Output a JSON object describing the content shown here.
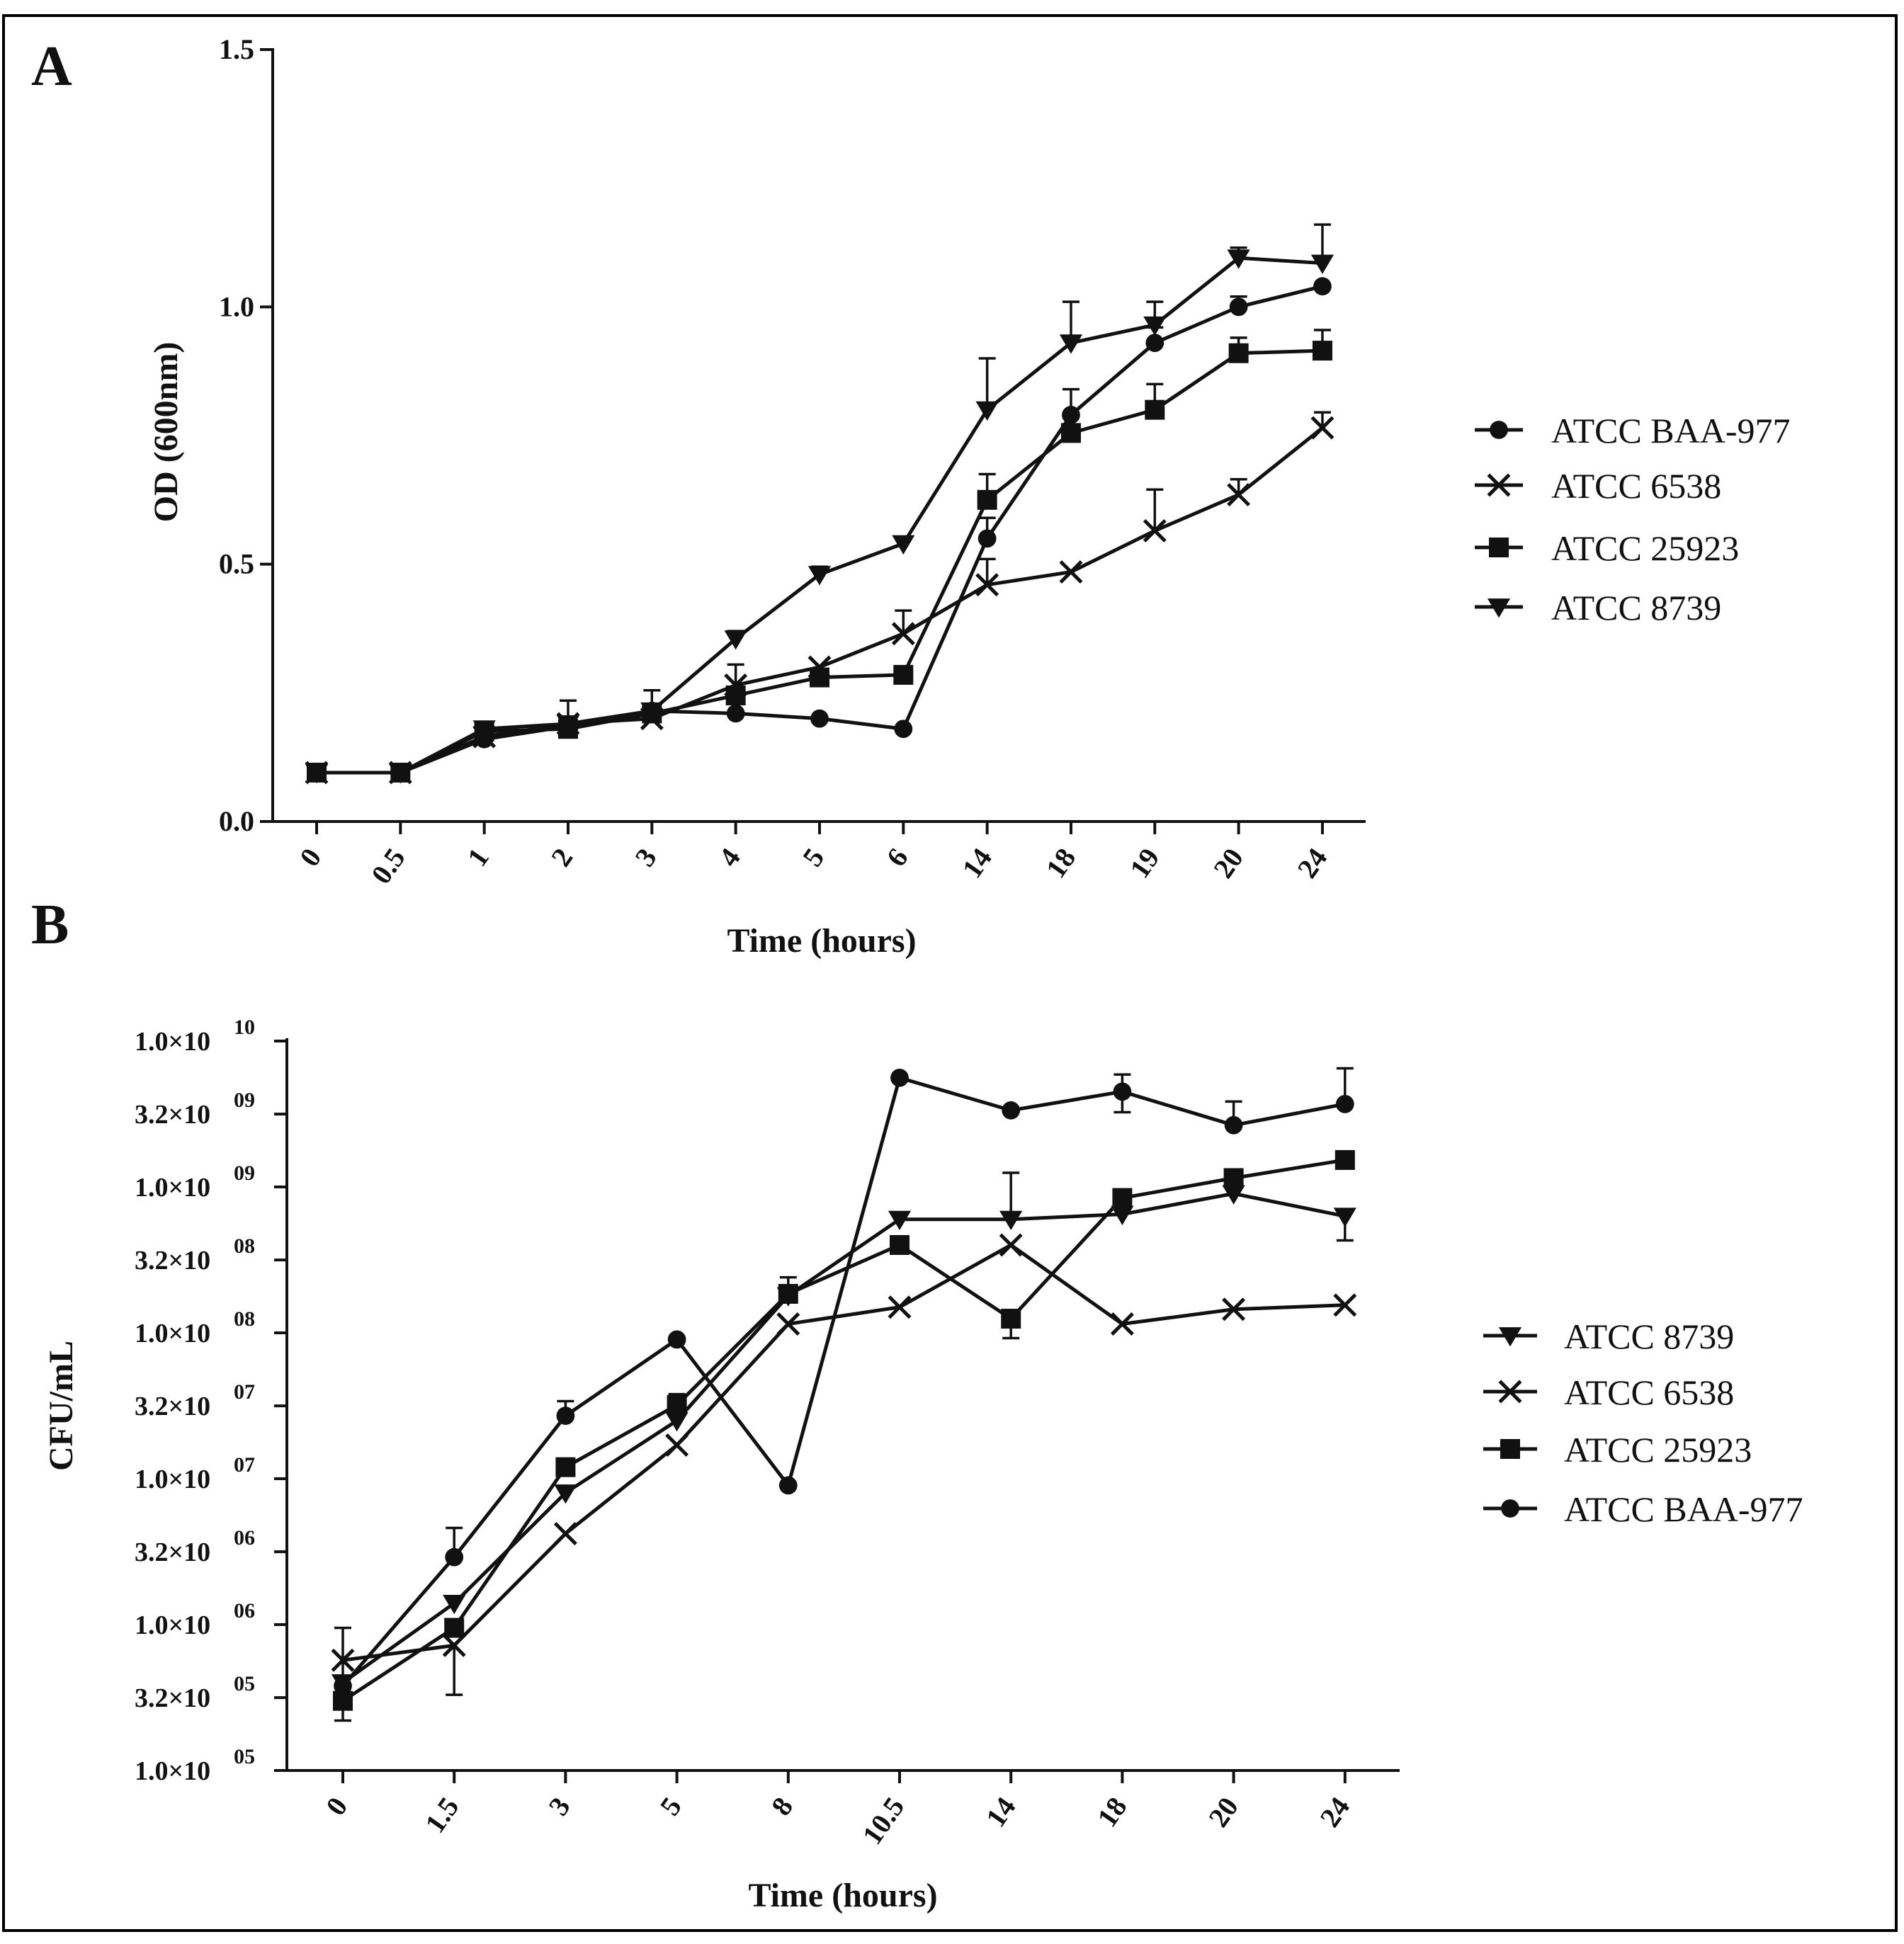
{
  "chart_data": [
    {
      "panel": "A",
      "type": "line",
      "ylabel": "OD (600nm)",
      "xlabel": "Time (hours)",
      "categories": [
        "0",
        "0.5",
        "1",
        "2",
        "3",
        "4",
        "5",
        "6",
        "14",
        "18",
        "19",
        "20",
        "24"
      ],
      "ylim": [
        0,
        1.5
      ],
      "yticks": [
        0,
        0.5,
        1,
        1.5
      ],
      "ytick_labels": [
        "0.0",
        "0.5",
        "1.0",
        "1.5"
      ],
      "legend_position": "right",
      "series": [
        {
          "name": "ATCC BAA-977",
          "marker": "circle",
          "values": [
            0.095,
            0.095,
            0.16,
            0.185,
            0.215,
            0.21,
            0.2,
            0.18,
            0.55,
            0.79,
            0.93,
            1.0,
            1.04
          ],
          "errors": [
            0.005,
            0.005,
            0.01,
            0.01,
            0.01,
            0.01,
            0.005,
            0.005,
            0.04,
            0.05,
            0.03,
            0.02,
            0.01
          ]
        },
        {
          "name": "ATCC 6538",
          "marker": "x",
          "values": [
            0.095,
            0.095,
            0.165,
            0.19,
            0.2,
            0.265,
            0.3,
            0.365,
            0.46,
            0.485,
            0.565,
            0.635,
            0.765
          ],
          "errors": [
            0.005,
            0.005,
            0.01,
            0.01,
            0.01,
            0.04,
            0.01,
            0.045,
            0.05,
            0.01,
            0.08,
            0.03,
            0.03
          ]
        },
        {
          "name": "ATCC 25923",
          "marker": "square",
          "values": [
            0.095,
            0.095,
            0.175,
            0.18,
            0.21,
            0.245,
            0.28,
            0.285,
            0.625,
            0.755,
            0.8,
            0.91,
            0.915
          ],
          "errors": [
            0.005,
            0.005,
            0.01,
            0.01,
            0.01,
            0.015,
            0.015,
            0.005,
            0.05,
            0.03,
            0.05,
            0.03,
            0.04
          ]
        },
        {
          "name": "ATCC 8739",
          "marker": "triangle-down",
          "values": [
            0.095,
            0.095,
            0.18,
            0.19,
            0.215,
            0.355,
            0.48,
            0.54,
            0.8,
            0.93,
            0.965,
            1.095,
            1.085
          ],
          "errors": [
            0.005,
            0.005,
            0.01,
            0.045,
            0.04,
            0.015,
            0.015,
            0.01,
            0.1,
            0.08,
            0.045,
            0.02,
            0.075
          ]
        }
      ]
    },
    {
      "panel": "B",
      "type": "line",
      "yscale": "log",
      "ylabel": "CFU/mL",
      "xlabel": "Time (hours)",
      "categories": [
        "0",
        "1.5",
        "3",
        "5",
        "8",
        "10.5",
        "14",
        "18",
        "20",
        "24"
      ],
      "ylim": [
        100000,
        10000000000
      ],
      "yticks": [
        100000,
        316000,
        1000000,
        3160000,
        10000000,
        31600000,
        100000000,
        316000000,
        1000000000,
        3160000000,
        10000000000
      ],
      "ytick_mantissas": [
        "1.0×10",
        "3.2×10",
        "1.0×10",
        "3.2×10",
        "1.0×10",
        "3.2×10",
        "1.0×10",
        "3.2×10",
        "1.0×10",
        "3.2×10",
        "1.0×10"
      ],
      "ytick_exponents": [
        "05",
        "05",
        "06",
        "06",
        "07",
        "07",
        "08",
        "08",
        "09",
        "09",
        "10"
      ],
      "legend_position": "right",
      "series": [
        {
          "name": "ATCC 8739",
          "marker": "triangle-down",
          "values": [
            400000,
            1400000,
            8000000,
            25000000,
            180000000,
            600000000,
            600000000,
            650000000,
            900000000,
            630000000
          ],
          "error_hi": [
            null,
            null,
            null,
            null,
            240000000,
            null,
            1250000000,
            null,
            null,
            null
          ],
          "error_lo": [
            null,
            null,
            null,
            null,
            null,
            null,
            null,
            null,
            null,
            430000000
          ]
        },
        {
          "name": "ATCC 6538",
          "marker": "x",
          "values": [
            570000,
            720000,
            4200000,
            17000000,
            115000000,
            150000000,
            400000000,
            115000000,
            145000000,
            155000000
          ],
          "error_hi": [
            null,
            null,
            null,
            null,
            null,
            null,
            null,
            null,
            null,
            null
          ],
          "error_lo": [
            null,
            330000,
            null,
            null,
            null,
            null,
            null,
            null,
            null,
            null
          ]
        },
        {
          "name": "ATCC 25923",
          "marker": "square",
          "values": [
            300000,
            950000,
            12000000,
            32000000,
            185000000,
            400000000,
            125000000,
            840000000,
            1150000000,
            1530000000
          ],
          "error_hi": [
            null,
            null,
            null,
            38000000,
            null,
            null,
            null,
            null,
            null,
            null
          ],
          "error_lo": [
            null,
            null,
            null,
            null,
            null,
            null,
            92000000,
            null,
            null,
            null
          ]
        },
        {
          "name": "ATCC BAA-977",
          "marker": "circle",
          "values": [
            380000,
            2900000,
            27000000,
            90000000,
            9000000,
            5600000000,
            3350000000,
            4500000000,
            2650000000,
            3700000000
          ],
          "error_hi": [
            950000,
            4600000,
            34000000,
            null,
            null,
            null,
            null,
            5900000000,
            3850000000,
            6500000000
          ],
          "error_lo": [
            220000,
            null,
            null,
            null,
            null,
            null,
            null,
            3250000000,
            null,
            null
          ]
        }
      ]
    }
  ]
}
